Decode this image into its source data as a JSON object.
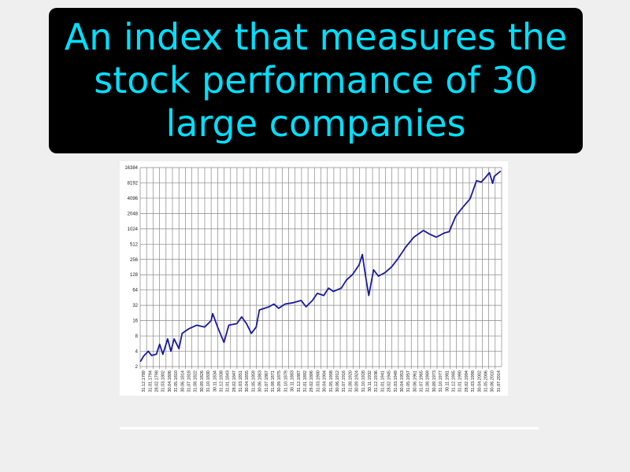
{
  "card": {
    "definition": "An index that measures the stock performance of 30 large companies"
  },
  "colors": {
    "title_text": "#00e0ff",
    "title_bg": "#000000",
    "series": "#1a1aa0",
    "grid": "#888888"
  },
  "chart_data": {
    "type": "line",
    "title": "",
    "xlabel": "",
    "ylabel": "",
    "y_scale": "log2",
    "ylim": [
      2,
      16384
    ],
    "xlim": [
      1789.9,
      2014.6
    ],
    "grid": true,
    "y_ticks": [
      "2",
      "4",
      "8",
      "16",
      "32",
      "64",
      "128",
      "256",
      "512",
      "1024",
      "2048",
      "4096",
      "8192",
      "16384"
    ],
    "x_ticks": [
      "31.12.1789",
      "31.01.1794",
      "28.02.1798",
      "31.03.1802",
      "30.04.1806",
      "31.05.1810",
      "30.06.1814",
      "31.07.1818",
      "31.08.1822",
      "30.09.1826",
      "31.10.1830",
      "30.11.1834",
      "31.12.1838",
      "31.01.1843",
      "28.02.1847",
      "31.03.1851",
      "30.04.1855",
      "31.05.1859",
      "30.06.1863",
      "31.07.1867",
      "31.08.1871",
      "30.09.1875",
      "31.10.1879",
      "30.11.1883",
      "31.12.1887",
      "31.01.1892",
      "29.02.1896",
      "31.03.1900",
      "30.04.1904",
      "31.05.1908",
      "30.06.1912",
      "31.07.1916",
      "31.08.1920",
      "30.09.1924",
      "31.10.1928",
      "30.11.1932",
      "31.12.1936",
      "31.01.1941",
      "28.02.1945",
      "31.03.1949",
      "30.04.1953",
      "31.05.1957",
      "30.06.1961",
      "31.07.1965",
      "31.08.1969",
      "30.09.1973",
      "31.10.1977",
      "30.11.1981",
      "31.12.1985",
      "31.01.1990",
      "28.02.1994",
      "31.03.1998",
      "30.04.2002",
      "31.05.2006",
      "30.06.2010",
      "31.07.2014"
    ],
    "series": [
      {
        "x": [
          1790,
          1792,
          1795,
          1797,
          1800,
          1802,
          1804,
          1807,
          1809,
          1811,
          1814,
          1816,
          1820,
          1825,
          1830,
          1834,
          1835,
          1838,
          1842,
          1845,
          1850,
          1853,
          1856,
          1859,
          1862,
          1864,
          1870,
          1873,
          1876,
          1880,
          1885,
          1890,
          1893,
          1897,
          1900,
          1904,
          1907,
          1910,
          1915,
          1918,
          1922,
          1926,
          1928,
          1930,
          1932,
          1935,
          1938,
          1942,
          1946,
          1950,
          1955,
          1960,
          1966,
          1970,
          1974,
          1979,
          1982,
          1986,
          1990,
          1995,
          1999,
          2002,
          2004,
          2007,
          2009,
          2010,
          2014
        ],
        "y": [
          2.5,
          3.2,
          4,
          3.3,
          3.5,
          5.5,
          3.5,
          7,
          4,
          7,
          4.5,
          9,
          11,
          13,
          12,
          16,
          22,
          12,
          6,
          13,
          14,
          19,
          14,
          9,
          12,
          26,
          30,
          34,
          28,
          34,
          36,
          40,
          30,
          40,
          55,
          50,
          70,
          60,
          70,
          100,
          130,
          200,
          320,
          120,
          50,
          160,
          120,
          140,
          180,
          260,
          450,
          700,
          950,
          800,
          700,
          850,
          900,
          1800,
          2600,
          4000,
          9000,
          8500,
          10000,
          13000,
          8000,
          11000,
          14000
        ]
      }
    ]
  }
}
